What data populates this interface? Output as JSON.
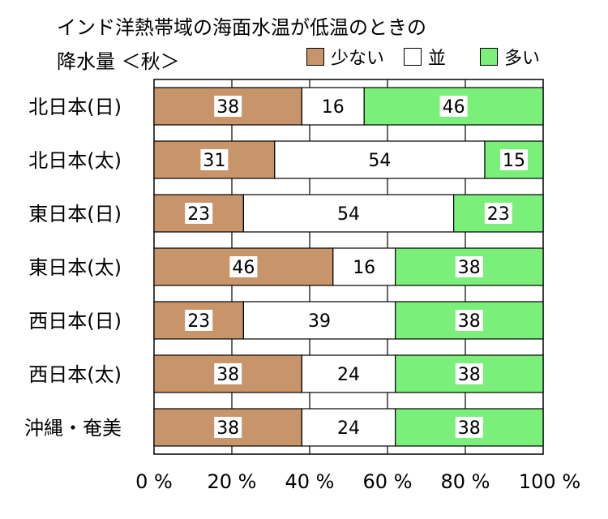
{
  "chart_data": {
    "type": "bar",
    "orientation": "horizontal",
    "stacked": "percent",
    "title_line1": "インド洋熱帯域の海面水温が低温のときの",
    "title_line2": "降水量 ＜秋＞",
    "categories": [
      "北日本(日)",
      "北日本(太)",
      "東日本(日)",
      "東日本(太)",
      "西日本(日)",
      "西日本(太)",
      "沖縄・奄美"
    ],
    "series": [
      {
        "name": "少ない",
        "color": "#c8956a",
        "values": [
          38,
          31,
          23,
          46,
          23,
          38,
          38
        ]
      },
      {
        "name": "並",
        "color": "#ffffff",
        "values": [
          16,
          54,
          54,
          16,
          39,
          24,
          24
        ]
      },
      {
        "name": "多い",
        "color": "#7aef7a",
        "values": [
          46,
          15,
          23,
          38,
          38,
          38,
          38
        ]
      }
    ],
    "x_ticks": [
      "0 %",
      "20 %",
      "40 %",
      "60 %",
      "80 %",
      "100 %"
    ],
    "xlim": [
      0,
      100
    ],
    "grid": true,
    "legend_position": "top-right"
  }
}
